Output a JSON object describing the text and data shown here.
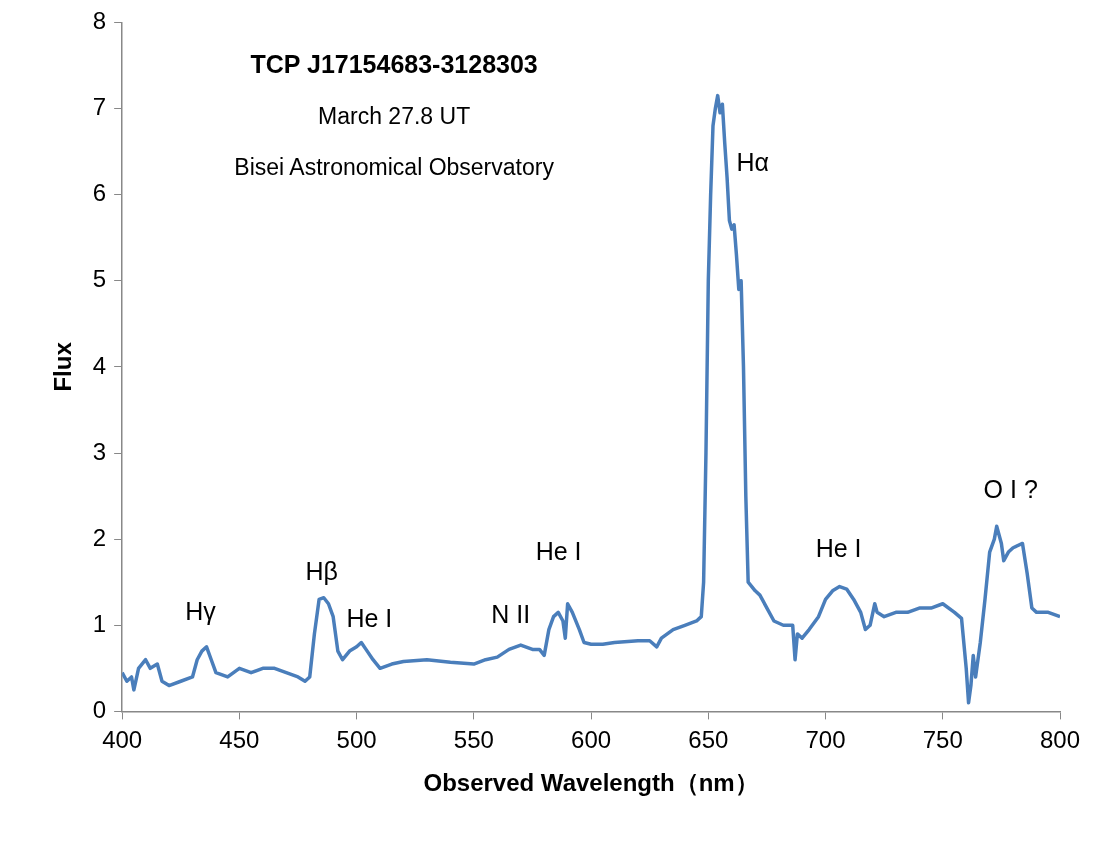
{
  "chart_data": {
    "type": "line",
    "title": "TCP J17154683-3128303",
    "subtitle": "March 27.8 UT",
    "xlabel": "Observed Wavelength（nm）",
    "ylabel": "Flux",
    "annotations": [
      "Bisei Astronomical Observatory",
      {
        "text": "Hγ",
        "x": 436,
        "y": 0.75
      },
      {
        "text": "Hβ",
        "x": 486,
        "y": 1.32
      },
      {
        "text": "He I",
        "x": 502,
        "y": 0.8
      },
      {
        "text": "N II",
        "x": 570,
        "y": 0.77
      },
      {
        "text": "He I",
        "x": 590,
        "y": 1.25
      },
      {
        "text": "Hα",
        "x": 654,
        "y": 7.15
      },
      {
        "text": "He I",
        "x": 706,
        "y": 1.45
      },
      {
        "text": "O I ?",
        "x": 773,
        "y": 2.15
      }
    ],
    "x": [
      400,
      402,
      404,
      405,
      407,
      410,
      412,
      415,
      417,
      420,
      425,
      430,
      432,
      434,
      436,
      438,
      440,
      445,
      450,
      455,
      460,
      465,
      470,
      475,
      478,
      480,
      482,
      484,
      486,
      488,
      490,
      492,
      494,
      497,
      500,
      502,
      504,
      507,
      510,
      515,
      520,
      530,
      540,
      550,
      555,
      560,
      565,
      570,
      575,
      578,
      580,
      582,
      584,
      586,
      588,
      589,
      590,
      592,
      595,
      597,
      600,
      605,
      610,
      620,
      625,
      628,
      630,
      635,
      640,
      645,
      647,
      648,
      649,
      650,
      651,
      652,
      653,
      654,
      655,
      656,
      657,
      658,
      659,
      660,
      661,
      662,
      663,
      664,
      665,
      666,
      667,
      670,
      672,
      675,
      678,
      682,
      686,
      687,
      688,
      690,
      693,
      697,
      700,
      703,
      706,
      709,
      712,
      715,
      717,
      719,
      721,
      722,
      725,
      730,
      735,
      740,
      745,
      750,
      755,
      758,
      760,
      761,
      762,
      763,
      764,
      766,
      768,
      770,
      772,
      773,
      775,
      776,
      778,
      780,
      784,
      786,
      788,
      790,
      795,
      800
    ],
    "series": [
      {
        "color": "#4a7ebb",
        "values": [
          0.45,
          0.35,
          0.4,
          0.25,
          0.5,
          0.6,
          0.5,
          0.55,
          0.35,
          0.3,
          0.35,
          0.4,
          0.6,
          0.7,
          0.75,
          0.6,
          0.45,
          0.4,
          0.5,
          0.45,
          0.5,
          0.5,
          0.45,
          0.4,
          0.35,
          0.4,
          0.9,
          1.3,
          1.32,
          1.25,
          1.1,
          0.7,
          0.6,
          0.7,
          0.75,
          0.8,
          0.72,
          0.6,
          0.5,
          0.55,
          0.58,
          0.6,
          0.57,
          0.55,
          0.6,
          0.63,
          0.72,
          0.77,
          0.72,
          0.72,
          0.65,
          0.95,
          1.1,
          1.15,
          1.05,
          0.85,
          1.25,
          1.15,
          0.95,
          0.8,
          0.78,
          0.78,
          0.8,
          0.82,
          0.82,
          0.75,
          0.85,
          0.95,
          1.0,
          1.05,
          1.1,
          1.5,
          3.0,
          5.0,
          6.0,
          6.8,
          7.0,
          7.15,
          6.95,
          7.05,
          6.6,
          6.2,
          5.7,
          5.6,
          5.65,
          5.3,
          4.9,
          5.0,
          4.0,
          2.5,
          1.5,
          1.4,
          1.35,
          1.2,
          1.05,
          1.0,
          1.0,
          0.6,
          0.9,
          0.85,
          0.95,
          1.1,
          1.3,
          1.4,
          1.45,
          1.42,
          1.3,
          1.15,
          0.95,
          1.0,
          1.25,
          1.15,
          1.1,
          1.15,
          1.15,
          1.2,
          1.2,
          1.25,
          1.15,
          1.08,
          0.5,
          0.1,
          0.3,
          0.65,
          0.4,
          0.8,
          1.3,
          1.85,
          2.0,
          2.15,
          1.95,
          1.75,
          1.85,
          1.9,
          1.95,
          1.6,
          1.2,
          1.15,
          1.15,
          1.1
        ]
      }
    ],
    "xlim": [
      400,
      800
    ],
    "xticks": [
      400,
      450,
      500,
      550,
      600,
      650,
      700,
      750,
      800
    ],
    "ylim": [
      0,
      8
    ],
    "yticks": [
      0,
      1,
      2,
      3,
      4,
      5,
      6,
      7,
      8
    ],
    "grid": false,
    "legend": false,
    "marker": "none",
    "line_style": "solid"
  }
}
